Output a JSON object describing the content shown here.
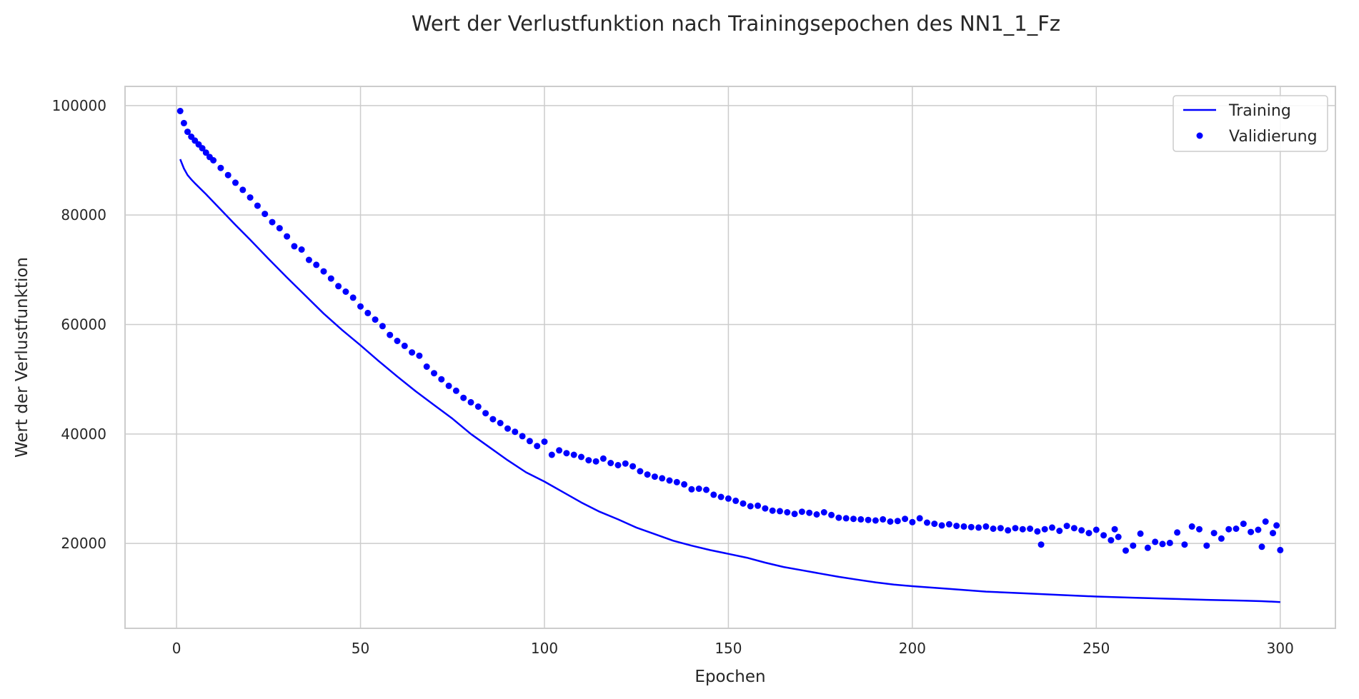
{
  "chart_data": {
    "type": "line",
    "title": "Wert der Verlustfunktion nach Trainingsepochen des NN1_1_Fz",
    "xlabel": "Epochen",
    "ylabel": "Wert der Verlustfunktion",
    "xlim": [
      -14,
      315
    ],
    "ylim": [
      4500,
      103500
    ],
    "xticks": [
      0,
      50,
      100,
      150,
      200,
      250,
      300
    ],
    "yticks": [
      20000,
      40000,
      60000,
      80000,
      100000
    ],
    "grid": true,
    "legend": "top-right",
    "colors": {
      "line": "#0000ff",
      "points": "#0000ff",
      "grid": "#cccccc",
      "frame": "#cccccc"
    },
    "series": [
      {
        "name": "Training",
        "style": "line",
        "x": [
          1,
          2,
          3,
          4,
          5,
          8,
          12,
          16,
          20,
          25,
          30,
          35,
          40,
          45,
          50,
          55,
          60,
          65,
          70,
          75,
          80,
          85,
          90,
          95,
          100,
          105,
          110,
          115,
          120,
          125,
          130,
          135,
          140,
          145,
          150,
          155,
          160,
          165,
          170,
          175,
          180,
          185,
          190,
          195,
          200,
          210,
          220,
          230,
          240,
          250,
          260,
          270,
          280,
          290,
          295,
          300
        ],
        "y": [
          90200,
          88500,
          87300,
          86500,
          85800,
          83800,
          81000,
          78200,
          75500,
          72000,
          68600,
          65300,
          62000,
          59000,
          56200,
          53300,
          50500,
          47800,
          45300,
          42800,
          40000,
          37600,
          35200,
          33000,
          31300,
          29400,
          27500,
          25800,
          24400,
          22900,
          21700,
          20500,
          19600,
          18800,
          18100,
          17400,
          16500,
          15700,
          15100,
          14500,
          13900,
          13400,
          12900,
          12500,
          12200,
          11700,
          11200,
          10900,
          10600,
          10300,
          10100,
          9900,
          9700,
          9550,
          9450,
          9300
        ]
      },
      {
        "name": "Validierung",
        "style": "markers",
        "x": [
          1,
          2,
          3,
          4,
          5,
          6,
          7,
          8,
          9,
          10,
          12,
          14,
          16,
          18,
          20,
          22,
          24,
          26,
          28,
          30,
          32,
          34,
          36,
          38,
          40,
          42,
          44,
          46,
          48,
          50,
          52,
          54,
          56,
          58,
          60,
          62,
          64,
          66,
          68,
          70,
          72,
          74,
          76,
          78,
          80,
          82,
          84,
          86,
          88,
          90,
          92,
          94,
          96,
          98,
          100,
          102,
          104,
          106,
          108,
          110,
          112,
          114,
          116,
          118,
          120,
          122,
          124,
          126,
          128,
          130,
          132,
          134,
          136,
          138,
          140,
          142,
          144,
          146,
          148,
          150,
          152,
          154,
          156,
          158,
          160,
          162,
          164,
          166,
          168,
          170,
          172,
          174,
          176,
          178,
          180,
          182,
          184,
          186,
          188,
          190,
          192,
          194,
          196,
          198,
          200,
          202,
          204,
          206,
          208,
          210,
          212,
          214,
          216,
          218,
          220,
          222,
          224,
          226,
          228,
          230,
          232,
          234,
          235,
          236,
          238,
          240,
          242,
          244,
          246,
          248,
          250,
          252,
          254,
          255,
          256,
          258,
          260,
          262,
          264,
          266,
          268,
          270,
          272,
          274,
          276,
          278,
          280,
          282,
          284,
          286,
          288,
          290,
          292,
          294,
          295,
          296,
          298,
          299,
          300
        ],
        "y": [
          99000,
          96800,
          95200,
          94300,
          93600,
          92900,
          92200,
          91400,
          90600,
          90000,
          88600,
          87300,
          85900,
          84600,
          83200,
          81700,
          80200,
          78700,
          77600,
          76100,
          74300,
          73700,
          71800,
          70900,
          69700,
          68400,
          67000,
          66000,
          64900,
          63300,
          62100,
          60900,
          59700,
          58100,
          57000,
          56100,
          54900,
          54300,
          52300,
          51100,
          50000,
          48800,
          47900,
          46600,
          45800,
          45000,
          43800,
          42700,
          42000,
          41000,
          40400,
          39600,
          38700,
          37800,
          38600,
          36200,
          37000,
          36500,
          36200,
          35800,
          35200,
          35000,
          35500,
          34700,
          34300,
          34600,
          34100,
          33200,
          32600,
          32200,
          31900,
          31500,
          31200,
          30800,
          29900,
          30000,
          29800,
          28900,
          28500,
          28200,
          27800,
          27300,
          26800,
          26900,
          26400,
          26000,
          25900,
          25700,
          25400,
          25800,
          25600,
          25300,
          25700,
          25200,
          24700,
          24600,
          24500,
          24400,
          24300,
          24200,
          24400,
          24000,
          24100,
          24500,
          23900,
          24600,
          23800,
          23600,
          23300,
          23500,
          23200,
          23100,
          23000,
          22900,
          23100,
          22700,
          22800,
          22400,
          22800,
          22600,
          22700,
          22200,
          19800,
          22600,
          22900,
          22300,
          23200,
          22800,
          22400,
          21900,
          22500,
          21500,
          20600,
          22600,
          21200,
          18700,
          19600,
          21800,
          19200,
          20300,
          19900,
          20100,
          22000,
          19800,
          23100,
          22600,
          19600,
          21900,
          20900,
          22600,
          22700,
          23600,
          22100,
          22500,
          19400,
          24000,
          21900,
          23300,
          18800
        ]
      }
    ]
  }
}
